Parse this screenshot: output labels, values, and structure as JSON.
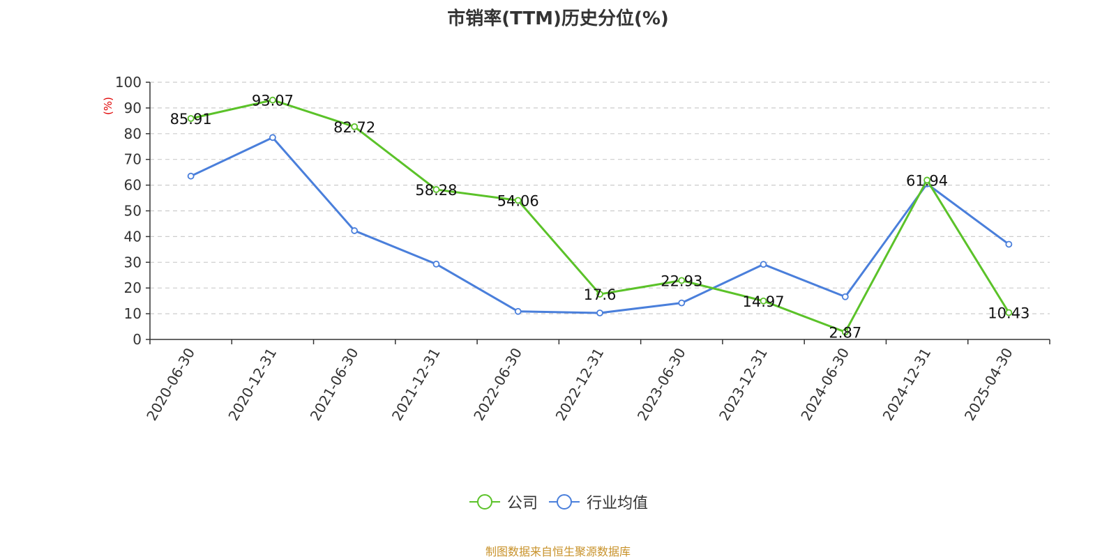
{
  "chart_data": {
    "type": "line",
    "title": "市销率(TTM)历史分位(%)",
    "ylabel": "(%)",
    "ylim": [
      0,
      100
    ],
    "yticks": [
      0,
      10,
      20,
      30,
      40,
      50,
      60,
      70,
      80,
      90,
      100
    ],
    "grid": true,
    "legend_position": "bottom-center",
    "categories": [
      "2020-06-30",
      "2020-12-31",
      "2021-06-30",
      "2021-12-31",
      "2022-06-30",
      "2022-12-31",
      "2023-06-30",
      "2023-12-31",
      "2024-06-30",
      "2024-12-31",
      "2025-04-30"
    ],
    "series": [
      {
        "name": "公司",
        "color": "#5bc229",
        "values": [
          85.91,
          93.07,
          82.72,
          58.28,
          54.06,
          17.6,
          22.93,
          14.97,
          2.87,
          61.94,
          10.43
        ],
        "labels": [
          "85.91",
          "93.07",
          "82.72",
          "58.28",
          "54.06",
          "17.6",
          "22.93",
          "14.97",
          "2.87",
          "61.94",
          "10.43"
        ]
      },
      {
        "name": "行业均值",
        "color": "#4a7fdb",
        "values": [
          63.5,
          78.5,
          42.3,
          29.3,
          10.9,
          10.3,
          14.2,
          29.2,
          16.6,
          60.5,
          37.0
        ]
      }
    ]
  },
  "source_text": "制图数据来自恒生聚源数据库"
}
